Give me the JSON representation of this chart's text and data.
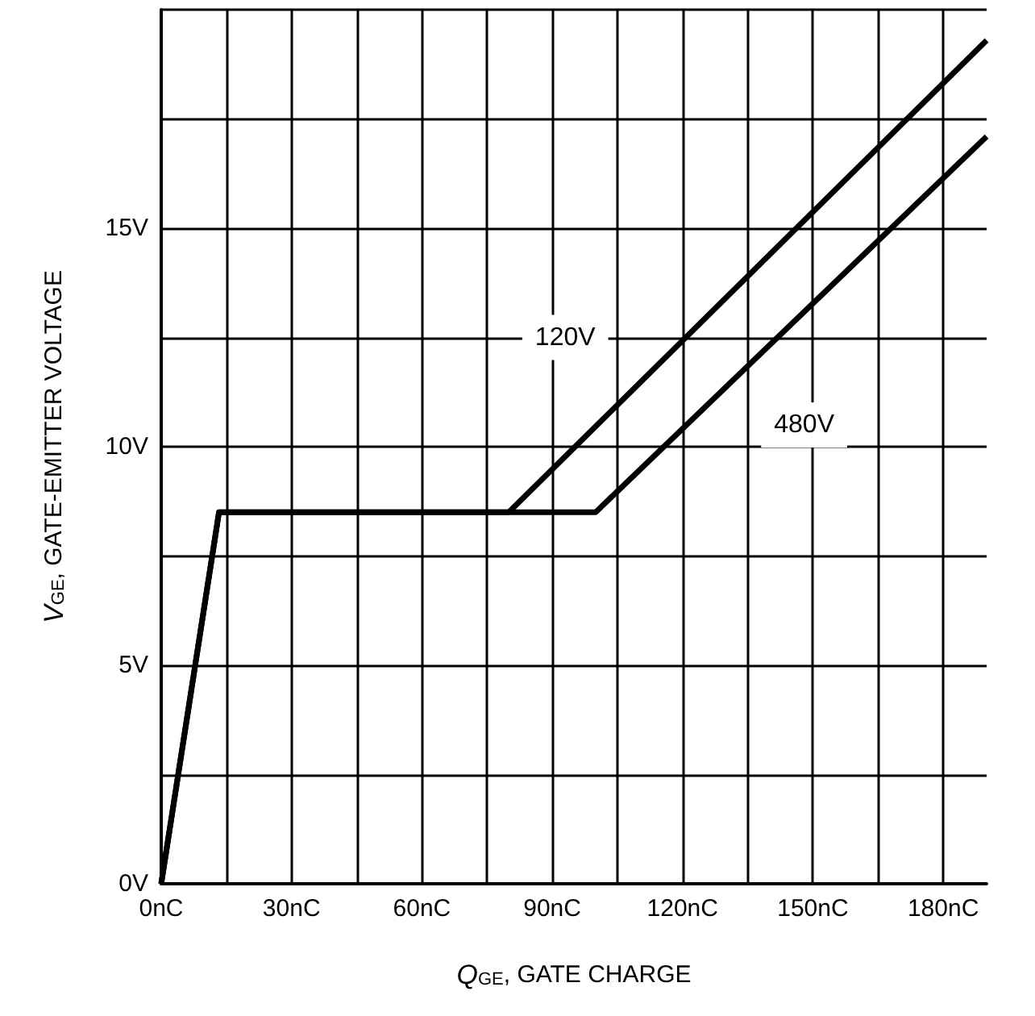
{
  "chart_data": {
    "type": "line",
    "xlabel": "Q$_{GE}$, GATE CHARGE",
    "ylabel": "V$_{GE}$, GATE-EMITTER VOLTAGE",
    "series": [
      {
        "name": "120V",
        "color": "#000000",
        "x": [
          0,
          13.3,
          80,
          190
        ],
        "values": [
          0,
          8.5,
          8.5,
          19.3
        ]
      },
      {
        "name": "480V",
        "color": "#000000",
        "x": [
          0,
          13.3,
          100,
          190
        ],
        "values": [
          0,
          8.5,
          8.5,
          17.1
        ]
      }
    ],
    "xlim": [
      0,
      190
    ],
    "xticks": [
      {
        "value": 0,
        "label": "0nC"
      },
      {
        "value": 15,
        "label": null
      },
      {
        "value": 30,
        "label": "30nC"
      },
      {
        "value": 45,
        "label": null
      },
      {
        "value": 60,
        "label": "60nC"
      },
      {
        "value": 75,
        "label": null
      },
      {
        "value": 90,
        "label": "90nC"
      },
      {
        "value": 105,
        "label": null
      },
      {
        "value": 120,
        "label": "120nC"
      },
      {
        "value": 135,
        "label": null
      },
      {
        "value": 150,
        "label": "150nC"
      },
      {
        "value": 165,
        "label": null
      },
      {
        "value": 180,
        "label": "180nC"
      }
    ],
    "ylim": [
      0,
      20
    ],
    "yticks": [
      {
        "value": 0,
        "label": "0V"
      },
      {
        "value": 2.5,
        "label": null
      },
      {
        "value": 5,
        "label": "5V"
      },
      {
        "value": 7.5,
        "label": null
      },
      {
        "value": 10,
        "label": "10V"
      },
      {
        "value": 12.5,
        "label": null
      },
      {
        "value": 15,
        "label": "15V"
      },
      {
        "value": 17.5,
        "label": null
      },
      {
        "value": 20,
        "label": null
      }
    ],
    "grid": true,
    "marker": "none",
    "line_style": "solid"
  }
}
